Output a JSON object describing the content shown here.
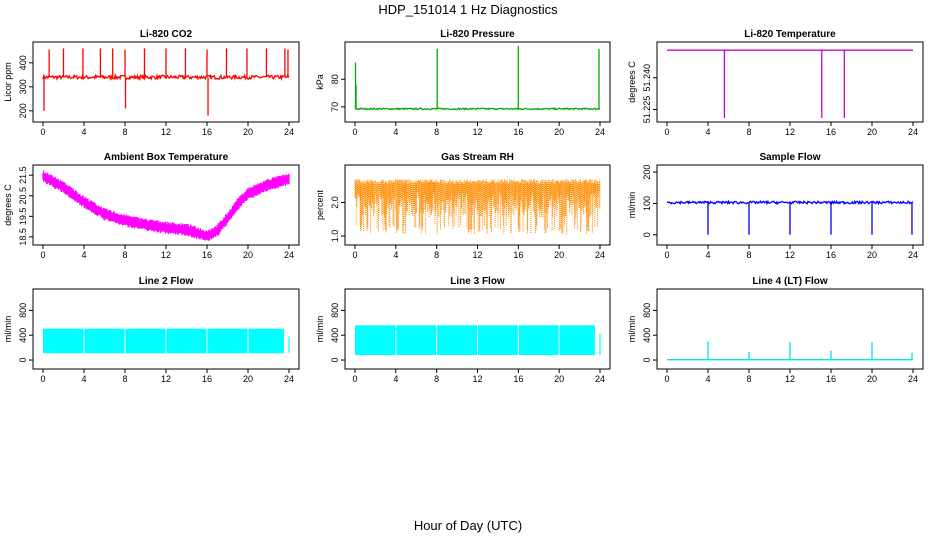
{
  "page": {
    "title": "HDP_151014  1 Hz Diagnostics",
    "xlabel": "Hour of Day (UTC)"
  },
  "chart_data": [
    {
      "type": "line",
      "title": "Li-820 CO2",
      "ylabel": "Licor ppm",
      "color": "#ff0000",
      "xlim": [
        0,
        24
      ],
      "xticks": [
        "0",
        "4",
        "8",
        "12",
        "16",
        "20",
        "24"
      ],
      "ylim": [
        170,
        470
      ],
      "yticks": [
        "200",
        "300",
        "400"
      ],
      "baseline": 340,
      "noise": 8,
      "spikes_up": [
        [
          0.6,
          455
        ],
        [
          2,
          460
        ],
        [
          3.9,
          460
        ],
        [
          5.6,
          460
        ],
        [
          6.8,
          460
        ],
        [
          8,
          455
        ],
        [
          9.9,
          460
        ],
        [
          12,
          460
        ],
        [
          13.9,
          460
        ],
        [
          16,
          455
        ],
        [
          17.9,
          460
        ],
        [
          19.9,
          460
        ],
        [
          21.8,
          460
        ],
        [
          23.6,
          460
        ],
        [
          23.9,
          455
        ]
      ],
      "spikes_down": [
        [
          0.1,
          200
        ],
        [
          8.05,
          210
        ],
        [
          16.1,
          180
        ]
      ]
    },
    {
      "type": "line",
      "title": "Li-820 Pressure",
      "ylabel": "kPa",
      "color": "#00aa00",
      "xlim": [
        0,
        24
      ],
      "xticks": [
        "0",
        "4",
        "8",
        "12",
        "16",
        "20",
        "24"
      ],
      "ylim": [
        66,
        92
      ],
      "yticks": [
        "70",
        "80"
      ],
      "baseline": 69.3,
      "noise": 0.25,
      "spikes_up": [
        [
          0.05,
          86
        ],
        [
          0.1,
          78
        ],
        [
          8.05,
          91
        ],
        [
          16,
          92
        ],
        [
          23.9,
          91
        ]
      ],
      "spikes_down": []
    },
    {
      "type": "line",
      "title": "Li-820 Temperature",
      "ylabel": "degrees C",
      "color": "#cc00cc",
      "xlim": [
        0,
        24
      ],
      "xticks": [
        "0",
        "4",
        "8",
        "12",
        "16",
        "20",
        "24"
      ],
      "ylim": [
        51.221,
        51.255
      ],
      "yticks": [
        "51.225",
        "51.240"
      ],
      "baseline": 51.253,
      "noise": 0,
      "spikes_up": [],
      "spikes_down": [
        [
          5.6,
          51.221
        ],
        [
          15.1,
          51.221
        ],
        [
          17.3,
          51.221
        ]
      ]
    },
    {
      "type": "line",
      "title": "Ambient Box Temperature",
      "ylabel": "degrees C",
      "color": "#ff00ff",
      "xlim": [
        0,
        24
      ],
      "xticks": [
        "0",
        "4",
        "8",
        "12",
        "16",
        "20",
        "24"
      ],
      "ylim": [
        18.3,
        21.8
      ],
      "yticks": [
        "18.5",
        "19.5",
        "20.5",
        "21.5"
      ],
      "curve": [
        [
          0,
          21.45
        ],
        [
          2,
          20.9
        ],
        [
          4,
          20.2
        ],
        [
          6,
          19.6
        ],
        [
          8,
          19.3
        ],
        [
          10,
          19.1
        ],
        [
          12,
          18.95
        ],
        [
          14,
          18.85
        ],
        [
          16,
          18.55
        ],
        [
          17,
          18.8
        ],
        [
          18,
          19.4
        ],
        [
          19,
          20.1
        ],
        [
          20,
          20.6
        ],
        [
          22,
          21.05
        ],
        [
          24,
          21.3
        ]
      ],
      "noise": 0.3
    },
    {
      "type": "scatter",
      "title": "Gas Stream RH",
      "ylabel": "percent",
      "color": "#ff8c00",
      "xlim": [
        0,
        24
      ],
      "xticks": [
        "0",
        "4",
        "8",
        "12",
        "16",
        "20",
        "24"
      ],
      "ylim": [
        0.85,
        3.0
      ],
      "yticks": [
        "1.0",
        "2.0"
      ],
      "band": [
        1.05,
        2.7
      ]
    },
    {
      "type": "line",
      "title": "Sample Flow",
      "ylabel": "ml/min",
      "color": "#0000ff",
      "xlim": [
        0,
        24
      ],
      "xticks": [
        "0",
        "4",
        "8",
        "12",
        "16",
        "20",
        "24"
      ],
      "ylim": [
        -20,
        210
      ],
      "yticks": [
        "0",
        "100",
        "200"
      ],
      "baseline": 103,
      "noise": 4,
      "spikes_up": [],
      "spikes_down": [
        [
          4,
          0
        ],
        [
          8,
          0
        ],
        [
          12,
          0
        ],
        [
          16,
          0
        ],
        [
          20,
          0
        ],
        [
          23.9,
          0
        ]
      ]
    },
    {
      "type": "area",
      "title": "Line 2 Flow",
      "ylabel": "ml/min",
      "color": "#00ffff",
      "xlim": [
        0,
        24
      ],
      "xticks": [
        "0",
        "4",
        "8",
        "12",
        "16",
        "20",
        "24"
      ],
      "ylim": [
        -80,
        1080
      ],
      "yticks": [
        "0",
        "400",
        "800"
      ],
      "band": [
        110,
        505
      ],
      "end": 23.5,
      "gaps": [
        4,
        8,
        12,
        16,
        20
      ]
    },
    {
      "type": "area",
      "title": "Line 3 Flow",
      "ylabel": "ml/min",
      "color": "#00ffff",
      "xlim": [
        0,
        24
      ],
      "xticks": [
        "0",
        "4",
        "8",
        "12",
        "16",
        "20",
        "24"
      ],
      "ylim": [
        -80,
        1080
      ],
      "yticks": [
        "0",
        "400",
        "800"
      ],
      "band": [
        80,
        560
      ],
      "end": 23.5,
      "gaps": [
        4,
        8,
        12,
        16,
        20
      ]
    },
    {
      "type": "line",
      "title": "Line 4 (LT) Flow",
      "ylabel": "ml/min",
      "color": "#00e5ee",
      "xlim": [
        0,
        24
      ],
      "xticks": [
        "0",
        "4",
        "8",
        "12",
        "16",
        "20",
        "24"
      ],
      "ylim": [
        -80,
        1080
      ],
      "yticks": [
        "0",
        "400",
        "800"
      ],
      "baseline": 5,
      "noise": 0,
      "spikes_up": [
        [
          4,
          300
        ],
        [
          8,
          130
        ],
        [
          12,
          290
        ],
        [
          16,
          150
        ],
        [
          20,
          290
        ],
        [
          23.9,
          120
        ]
      ],
      "spikes_down": []
    }
  ]
}
